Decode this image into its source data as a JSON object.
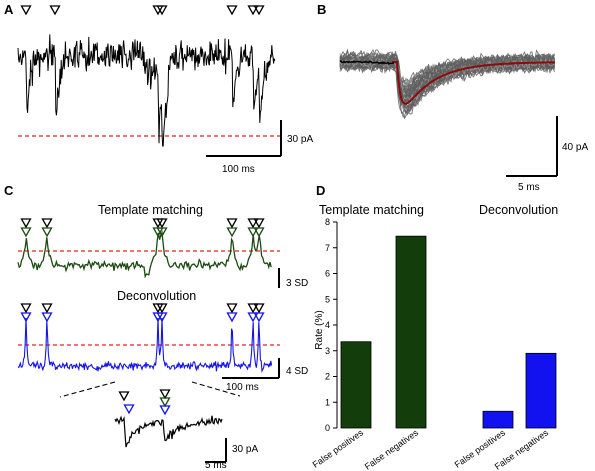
{
  "panels": {
    "A": {
      "letter": "A",
      "scale_label": "30 pA",
      "time_label": "100 ms",
      "threshold_color": "#e8231c"
    },
    "B": {
      "letter": "B",
      "scale_label": "40 pA",
      "time_label": "5 ms",
      "mean_color": "#8b0a0a",
      "trace_color": "#6b6b6b"
    },
    "C": {
      "letter": "C",
      "template_title": "Template matching",
      "template_scale": "3 SD",
      "deconv_title": "Deconvolution",
      "deconv_scale": "4 SD",
      "deconv_time": "100 ms",
      "zoom_scale": "30 pA",
      "zoom_time": "5 ms",
      "template_color": "#1c4a12",
      "deconv_color": "#1414e6"
    },
    "D": {
      "letter": "D"
    }
  },
  "chart_data": [
    {
      "type": "bar",
      "title": "Template matching",
      "ylabel": "Rate (%)",
      "ylim": [
        0,
        8
      ],
      "yticks": [
        "0",
        "1",
        "2",
        "3",
        "4",
        "5",
        "6",
        "7",
        "8"
      ],
      "categories": [
        "False positives",
        "False negatives"
      ],
      "values": [
        3.35,
        7.45
      ],
      "color": "#143d0c"
    },
    {
      "type": "bar",
      "title": "Deconvolution",
      "ylim": [
        0,
        8
      ],
      "categories": [
        "False positives",
        "False negatives"
      ],
      "values": [
        0.65,
        2.9
      ],
      "color": "#1212f0"
    }
  ]
}
